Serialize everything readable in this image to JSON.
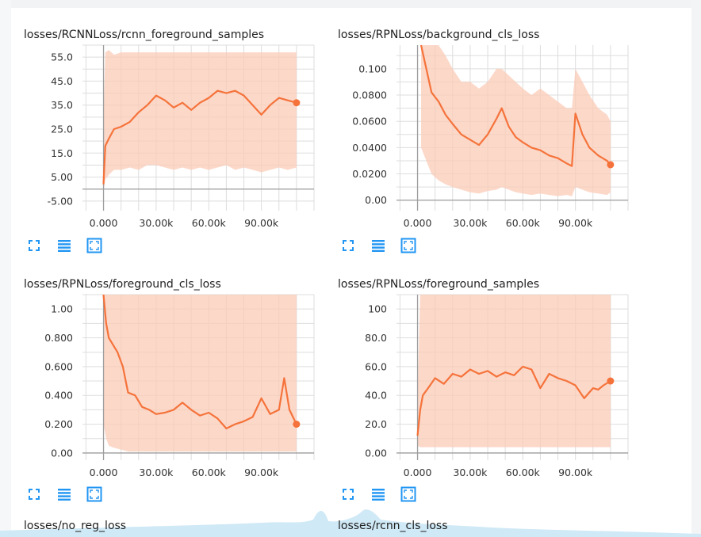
{
  "colors": {
    "line": "#f5733b",
    "band": "#fbcbb7",
    "grid": "#dddddd",
    "axis": "#9e9e9e",
    "icon": "#2196f3"
  },
  "icons": [
    "fullscreen-icon",
    "list-icon",
    "fit-domain-icon"
  ],
  "bottom_titles": [
    "losses/no_reg_loss",
    "losses/rcnn_cls_loss"
  ],
  "chart_data": [
    {
      "type": "line",
      "title": "losses/RCNNLoss/rcnn_foreground_samples",
      "xlim": [
        -12000,
        120000
      ],
      "ylim": [
        -9,
        60
      ],
      "x_ticks": [
        0,
        30000,
        60000,
        90000
      ],
      "x_tick_labels": [
        "0.000",
        "30.00k",
        "60.00k",
        "90.00k"
      ],
      "y_ticks": [
        55,
        45,
        35,
        25,
        15,
        5,
        -5
      ],
      "y_tick_labels": [
        "55.0",
        "45.0",
        "35.0",
        "25.0",
        "15.0",
        "5.00",
        "-5.00"
      ],
      "series": [
        {
          "x": [
            0,
            1000,
            3000,
            6000,
            10000,
            15000,
            20000,
            25000,
            30000,
            35000,
            40000,
            45000,
            50000,
            55000,
            60000,
            65000,
            70000,
            75000,
            80000,
            85000,
            90000,
            95000,
            100000,
            105000,
            110000
          ],
          "values": [
            2,
            18,
            21,
            25,
            26,
            28,
            32,
            35,
            39,
            37,
            34,
            36,
            33,
            36,
            38,
            41,
            40,
            41,
            39,
            35,
            31,
            35,
            38,
            37,
            36
          ],
          "band_low": [
            -1,
            4,
            6,
            8,
            8,
            9,
            8,
            10,
            10,
            9,
            8,
            9,
            8,
            9,
            8,
            9,
            10,
            8,
            9,
            8,
            7,
            8,
            9,
            8,
            9
          ],
          "band_high": [
            30,
            57,
            58,
            56,
            57,
            57,
            57,
            57,
            57,
            57,
            57,
            57,
            57,
            57,
            57,
            57,
            57,
            57,
            57,
            57,
            57,
            57,
            57,
            57,
            57
          ]
        }
      ]
    },
    {
      "type": "line",
      "title": "losses/RPNLoss/background_cls_loss",
      "xlim": [
        -12000,
        120000
      ],
      "ylim": [
        -0.008,
        0.118
      ],
      "x_ticks": [
        0,
        30000,
        60000,
        90000
      ],
      "x_tick_labels": [
        "0.000",
        "30.00k",
        "60.00k",
        "90.00k"
      ],
      "y_ticks": [
        0.1,
        0.08,
        0.06,
        0.04,
        0.02,
        0
      ],
      "y_tick_labels": [
        "0.100",
        "0.0800",
        "0.0600",
        "0.0400",
        "0.0200",
        "0.00"
      ],
      "series": [
        {
          "x": [
            2000,
            5000,
            8000,
            12000,
            16000,
            20000,
            25000,
            30000,
            35000,
            40000,
            45000,
            48000,
            52000,
            56000,
            60000,
            65000,
            70000,
            75000,
            80000,
            85000,
            88000,
            90000,
            94000,
            98000,
            103000,
            108000,
            110000
          ],
          "values": [
            0.118,
            0.1,
            0.082,
            0.075,
            0.065,
            0.058,
            0.05,
            0.046,
            0.042,
            0.05,
            0.062,
            0.07,
            0.056,
            0.048,
            0.044,
            0.04,
            0.038,
            0.034,
            0.032,
            0.028,
            0.026,
            0.066,
            0.05,
            0.04,
            0.034,
            0.03,
            0.027
          ],
          "band_low": [
            0.04,
            0.03,
            0.02,
            0.015,
            0.012,
            0.01,
            0.008,
            0.006,
            0.005,
            0.007,
            0.008,
            0.01,
            0.008,
            0.006,
            0.005,
            0.004,
            0.005,
            0.004,
            0.003,
            0.004,
            0.003,
            0.01,
            0.008,
            0.006,
            0.005,
            0.004,
            0.006
          ],
          "band_high": [
            0.118,
            0.118,
            0.118,
            0.118,
            0.11,
            0.1,
            0.09,
            0.09,
            0.085,
            0.09,
            0.1,
            0.1,
            0.095,
            0.09,
            0.085,
            0.08,
            0.085,
            0.08,
            0.075,
            0.07,
            0.07,
            0.1,
            0.09,
            0.08,
            0.07,
            0.065,
            0.06
          ]
        }
      ]
    },
    {
      "type": "line",
      "title": "losses/RPNLoss/foreground_cls_loss",
      "xlim": [
        -12000,
        120000
      ],
      "ylim": [
        -0.05,
        1.1
      ],
      "x_ticks": [
        0,
        30000,
        60000,
        90000
      ],
      "x_tick_labels": [
        "0.000",
        "30.00k",
        "60.00k",
        "90.00k"
      ],
      "y_ticks": [
        1.0,
        0.8,
        0.6,
        0.4,
        0.2,
        0
      ],
      "y_tick_labels": [
        "1.00",
        "0.800",
        "0.600",
        "0.400",
        "0.200",
        "0.00"
      ],
      "series": [
        {
          "x": [
            0,
            1500,
            3000,
            5000,
            8000,
            11000,
            14000,
            18000,
            22000,
            26000,
            30000,
            35000,
            40000,
            45000,
            50000,
            55000,
            60000,
            65000,
            70000,
            75000,
            80000,
            85000,
            90000,
            95000,
            100000,
            103000,
            106000,
            110000
          ],
          "values": [
            1.1,
            0.9,
            0.8,
            0.76,
            0.7,
            0.6,
            0.42,
            0.4,
            0.32,
            0.3,
            0.27,
            0.28,
            0.3,
            0.35,
            0.3,
            0.26,
            0.28,
            0.24,
            0.17,
            0.2,
            0.22,
            0.25,
            0.38,
            0.27,
            0.3,
            0.52,
            0.3,
            0.2
          ],
          "band_low": [
            0.2,
            0.1,
            0.05,
            0.04,
            0.03,
            0.02,
            0.01,
            0.01,
            0.01,
            0.01,
            0.01,
            0.01,
            0.01,
            0.01,
            0.01,
            0.01,
            0.01,
            0.01,
            0.01,
            0.01,
            0.01,
            0.01,
            0.01,
            0.01,
            0.01,
            0.01,
            0.01,
            0.01
          ],
          "band_high": [
            1.1,
            1.1,
            1.1,
            1.1,
            1.1,
            1.1,
            1.1,
            1.1,
            1.1,
            1.1,
            1.1,
            1.1,
            1.1,
            1.1,
            1.1,
            1.1,
            1.1,
            1.1,
            1.1,
            1.1,
            1.1,
            1.1,
            1.1,
            1.1,
            1.1,
            1.1,
            1.1,
            1.1
          ]
        }
      ]
    },
    {
      "type": "line",
      "title": "losses/RPNLoss/foreground_samples",
      "xlim": [
        -12000,
        120000
      ],
      "ylim": [
        -5,
        110
      ],
      "x_ticks": [
        0,
        30000,
        60000,
        90000
      ],
      "x_tick_labels": [
        "0.000",
        "30.00k",
        "60.00k",
        "90.00k"
      ],
      "y_ticks": [
        100,
        80,
        60,
        40,
        20,
        0
      ],
      "y_tick_labels": [
        "100",
        "80.0",
        "60.0",
        "40.0",
        "20.0",
        "0.00"
      ],
      "series": [
        {
          "x": [
            0,
            1500,
            3000,
            6000,
            10000,
            15000,
            20000,
            25000,
            30000,
            35000,
            40000,
            45000,
            50000,
            55000,
            60000,
            65000,
            70000,
            75000,
            80000,
            85000,
            90000,
            95000,
            100000,
            103000,
            106000,
            110000
          ],
          "values": [
            12,
            30,
            40,
            45,
            52,
            48,
            55,
            53,
            58,
            55,
            57,
            53,
            56,
            54,
            60,
            58,
            45,
            55,
            52,
            50,
            47,
            38,
            45,
            44,
            47,
            50
          ],
          "band_low": [
            5,
            4,
            4,
            4,
            4,
            4,
            4,
            4,
            4,
            4,
            4,
            4,
            4,
            4,
            4,
            4,
            4,
            4,
            4,
            4,
            4,
            4,
            4,
            4,
            4,
            4
          ],
          "band_high": [
            40,
            110,
            110,
            110,
            110,
            110,
            110,
            110,
            110,
            110,
            110,
            110,
            110,
            110,
            110,
            110,
            110,
            110,
            110,
            110,
            110,
            110,
            110,
            110,
            110,
            110
          ]
        }
      ]
    }
  ]
}
